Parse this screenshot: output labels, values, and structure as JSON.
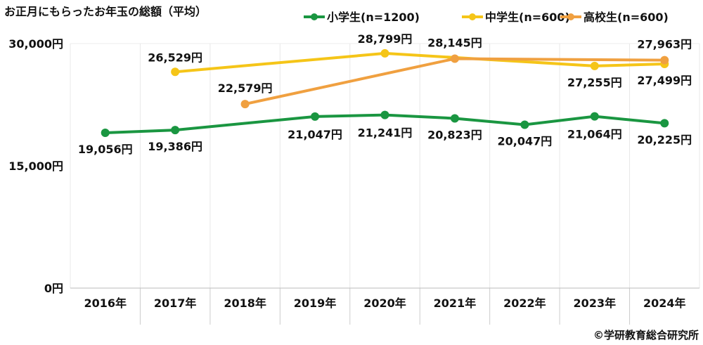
{
  "chart_data": {
    "type": "line",
    "title": "お正月にもらったお年玉の総額（平均）",
    "categories": [
      "2016年",
      "2017年",
      "2018年",
      "2019年",
      "2020年",
      "2021年",
      "2022年",
      "2023年",
      "2024年"
    ],
    "ylim": [
      0,
      30000
    ],
    "yticks": [
      0,
      15000,
      30000
    ],
    "ytick_labels": [
      "0円",
      "15,000円",
      "30,000円"
    ],
    "grid": "vertical",
    "legend": "top-right",
    "series": [
      {
        "name": "小学生(n=1200)",
        "color": "#1a9641",
        "values": [
          19056,
          19386,
          null,
          21047,
          21241,
          20823,
          20047,
          21064,
          20225
        ],
        "labels": [
          "19,056円",
          "19,386円",
          "",
          "21,047円",
          "21,241円",
          "20,823円",
          "20,047円",
          "21,064円",
          "20,225円"
        ]
      },
      {
        "name": "中学生(n=600)",
        "color": "#f5c518",
        "values": [
          null,
          26529,
          null,
          null,
          28799,
          null,
          null,
          27255,
          27499
        ],
        "labels": [
          "",
          "26,529円",
          "",
          "",
          "28,799円",
          "",
          "",
          "27,255円",
          "27,499円"
        ]
      },
      {
        "name": "高校生(n=600)",
        "color": "#f0a040",
        "values": [
          null,
          null,
          22579,
          null,
          null,
          28145,
          null,
          null,
          27963
        ],
        "labels": [
          "",
          "",
          "22,579円",
          "",
          "",
          "28,145円",
          "",
          "",
          "27,963円"
        ]
      }
    ],
    "source": "©学研教育総合研究所"
  }
}
